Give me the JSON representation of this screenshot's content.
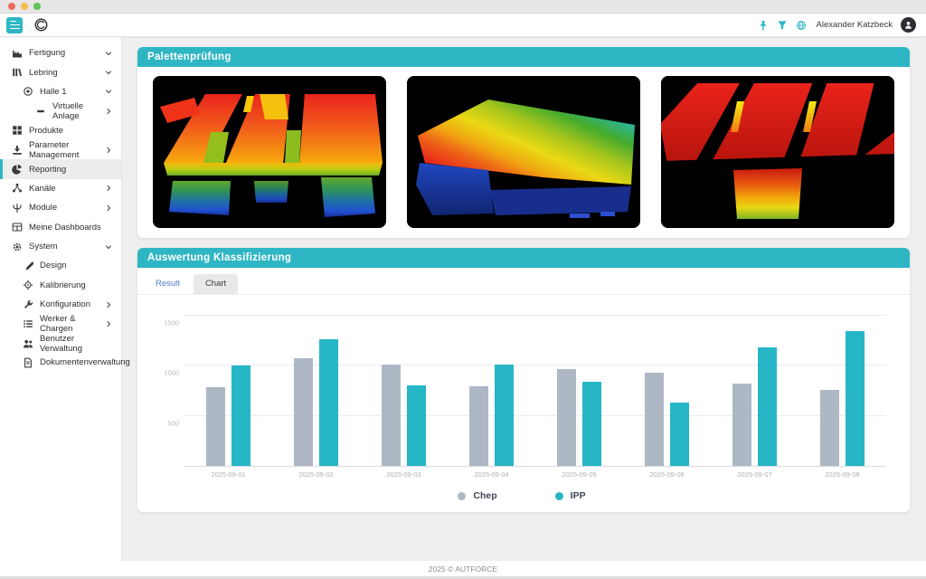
{
  "window": {
    "controls": [
      {
        "name": "close-button",
        "color": "#ee6a5f"
      },
      {
        "name": "minimize-button",
        "color": "#f5bd4c"
      },
      {
        "name": "zoom-button",
        "color": "#61c554"
      }
    ]
  },
  "header": {
    "user_name": "Alexander Katzbeck",
    "action_icons": [
      "pin-icon",
      "filter-icon",
      "globe-icon"
    ]
  },
  "sidebar": {
    "items": [
      {
        "label": "Fertigung",
        "icon": "factory-icon",
        "chevron": "down",
        "indent": 0,
        "active": false
      },
      {
        "label": "Lebring",
        "icon": "library-icon",
        "chevron": "down",
        "indent": 0,
        "active": false
      },
      {
        "label": "Halle 1",
        "icon": "target-icon",
        "chevron": "down",
        "indent": 1,
        "active": false
      },
      {
        "label": "Virtuelle Anlage",
        "icon": "dash-icon",
        "chevron": "right",
        "indent": 2,
        "active": false
      },
      {
        "label": "Produkte",
        "icon": "products-icon",
        "chevron": "none",
        "indent": 0,
        "active": false
      },
      {
        "label": "Parameter Management",
        "icon": "parameter-icon",
        "chevron": "right",
        "indent": 0,
        "active": false
      },
      {
        "label": "Reporting",
        "icon": "pie-icon",
        "chevron": "none",
        "indent": 0,
        "active": true
      },
      {
        "label": "Kanäle",
        "icon": "network-icon",
        "chevron": "right",
        "indent": 0,
        "active": false
      },
      {
        "label": "Module",
        "icon": "module-icon",
        "chevron": "right",
        "indent": 0,
        "active": false
      },
      {
        "label": "Meine Dashboards",
        "icon": "dashboard-icon",
        "chevron": "none",
        "indent": 0,
        "active": false
      },
      {
        "label": "System",
        "icon": "gear-icon",
        "chevron": "down",
        "indent": 0,
        "active": false
      },
      {
        "label": "Design",
        "icon": "brush-icon",
        "chevron": "none",
        "indent": 1,
        "active": false
      },
      {
        "label": "Kalibrierung",
        "icon": "crosshair-icon",
        "chevron": "none",
        "indent": 1,
        "active": false
      },
      {
        "label": "Konfiguration",
        "icon": "wrench-icon",
        "chevron": "right",
        "indent": 1,
        "active": false
      },
      {
        "label": "Werker & Chargen",
        "icon": "list-icon",
        "chevron": "right",
        "indent": 1,
        "active": false
      },
      {
        "label": "Benutzer Verwaltung",
        "icon": "users-icon",
        "chevron": "none",
        "indent": 1,
        "active": false
      },
      {
        "label": "Dokumentenverwaltung",
        "icon": "document-icon",
        "chevron": "none",
        "indent": 1,
        "active": false
      }
    ]
  },
  "panels": {
    "paletten": {
      "title": "Palettenprüfung",
      "images": [
        "pallet-scan-1",
        "pallet-scan-2",
        "pallet-scan-3"
      ]
    },
    "auswertung": {
      "title": "Auswertung Klassifizierung",
      "tabs": [
        {
          "label": "Result",
          "active": true
        },
        {
          "label": "Chart",
          "active": false
        }
      ]
    }
  },
  "chart_data": {
    "type": "bar",
    "categories": [
      "2025-09-01",
      "2025-09-02",
      "2025-09-03",
      "2025-09-04",
      "2025-09-05",
      "2025-09-06",
      "2025-09-07",
      "2025-09-08"
    ],
    "series": [
      {
        "name": "Chep",
        "color": "#aeb7c4",
        "values": [
          790,
          1080,
          1010,
          795,
          970,
          930,
          825,
          755
        ]
      },
      {
        "name": "IPP",
        "color": "#26b6c6",
        "values": [
          1000,
          1265,
          805,
          1010,
          840,
          630,
          1180,
          1350
        ]
      }
    ],
    "title": "",
    "xlabel": "",
    "ylabel": "",
    "ylim": [
      0,
      1500
    ],
    "yticks": [
      500,
      1000,
      1500
    ],
    "grid": true,
    "legend_position": "bottom"
  },
  "footer": {
    "text": "2025 © AUTFORCE"
  },
  "colors": {
    "accent": "#2fb6c4",
    "chep": "#aeb7c4",
    "ipp": "#26b6c6",
    "active_tab_text": "#4d7cc0"
  }
}
